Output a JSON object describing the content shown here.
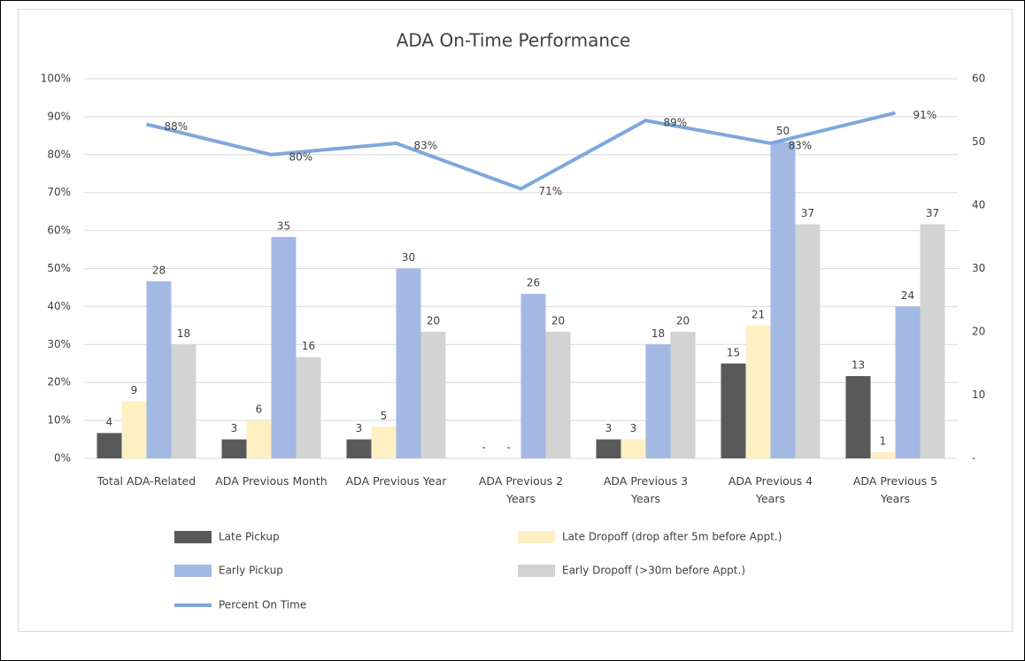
{
  "chart_data": {
    "type": "bar",
    "title": "ADA On-Time Performance",
    "categories": [
      "Total ADA-Related",
      "ADA Previous Month",
      "ADA Previous Year",
      "ADA Previous 2 Years",
      "ADA Previous 3 Years",
      "ADA Previous 4 Years",
      "ADA Previous 5 Years"
    ],
    "series": [
      {
        "name": "Late Pickup",
        "color": "#595959",
        "axis": "y2",
        "values": [
          4,
          3,
          3,
          0,
          3,
          15,
          13
        ],
        "value_labels": [
          "4",
          "3",
          "3",
          "-",
          "3",
          "15",
          "13"
        ]
      },
      {
        "name": "Late Dropoff (drop after 5m before Appt.)",
        "color": "#fff0c4",
        "axis": "y2",
        "values": [
          9,
          6,
          5,
          0,
          3,
          21,
          1
        ],
        "value_labels": [
          "9",
          "6",
          "5",
          "-",
          "3",
          "21",
          "1"
        ]
      },
      {
        "name": "Early Pickup",
        "color": "#a3b9e3",
        "axis": "y2",
        "values": [
          28,
          35,
          30,
          26,
          18,
          50,
          24
        ]
      },
      {
        "name": "Early Dropoff (>30m before Appt.)",
        "color": "#d3d3d3",
        "axis": "y2",
        "values": [
          18,
          16,
          20,
          20,
          20,
          37,
          37
        ]
      },
      {
        "name": "Percent On Time",
        "type": "line",
        "color": "#7ea8dc",
        "axis": "y",
        "values": [
          88,
          80,
          83,
          71,
          89,
          83,
          91
        ],
        "value_labels": [
          "88%",
          "80%",
          "83%",
          "71%",
          "89%",
          "83%",
          "91%"
        ]
      }
    ],
    "ylim": [
      0,
      100
    ],
    "yticks": [
      {
        "value": 0,
        "label": "0%"
      },
      {
        "value": 10,
        "label": "10%"
      },
      {
        "value": 20,
        "label": "20%"
      },
      {
        "value": 30,
        "label": "30%"
      },
      {
        "value": 40,
        "label": "40%"
      },
      {
        "value": 50,
        "label": "50%"
      },
      {
        "value": 60,
        "label": "60%"
      },
      {
        "value": 70,
        "label": "70%"
      },
      {
        "value": 80,
        "label": "80%"
      },
      {
        "value": 90,
        "label": "90%"
      },
      {
        "value": 100,
        "label": "100%"
      }
    ],
    "y2lim": [
      0,
      60
    ],
    "y2ticks": [
      {
        "value": 0,
        "label": "-"
      },
      10,
      20,
      30,
      40,
      50,
      60
    ],
    "grid": true
  }
}
